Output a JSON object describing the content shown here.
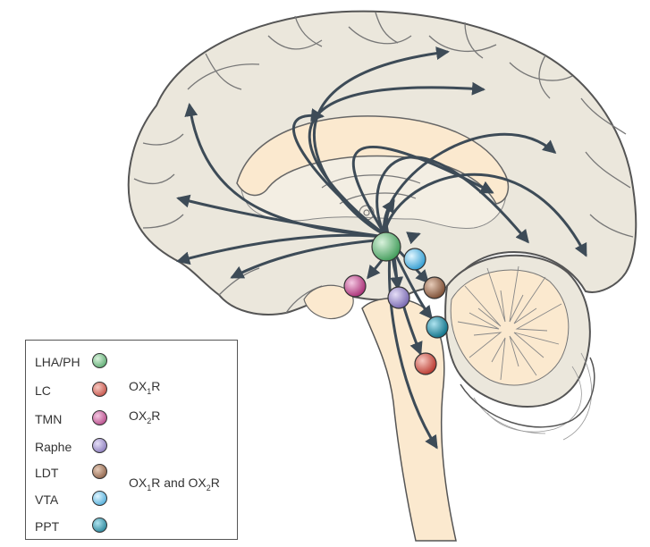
{
  "nuclei": [
    {
      "id": "lha",
      "name": "LHA/PH",
      "color": "#5fb472"
    },
    {
      "id": "lc",
      "name": "LC",
      "color": "#d9564a"
    },
    {
      "id": "tmn",
      "name": "TMN",
      "color": "#c8448f"
    },
    {
      "id": "raphe",
      "name": "Raphe",
      "color": "#9b8ccc"
    },
    {
      "id": "ldt",
      "name": "LDT",
      "color": "#9a6a4c"
    },
    {
      "id": "vta",
      "name": "VTA",
      "color": "#5fc4ec"
    },
    {
      "id": "ppt",
      "name": "PPT",
      "color": "#1a9bb8"
    }
  ],
  "receptor_groups": {
    "lc": {
      "receptor": "OX",
      "sub": "1",
      "suffix": "R"
    },
    "tmn": {
      "receptor": "OX",
      "sub": "2",
      "suffix": "R"
    },
    "shared": {
      "part1": "OX",
      "sub1": "1",
      "mid": "R and OX",
      "sub2": "2",
      "suffix": "R"
    }
  },
  "colors": {
    "brain_fill": "#ebe7dc",
    "brain_outline": "#555555",
    "inner_fill": "#fbe9cf",
    "arrow": "#3d4b57"
  }
}
